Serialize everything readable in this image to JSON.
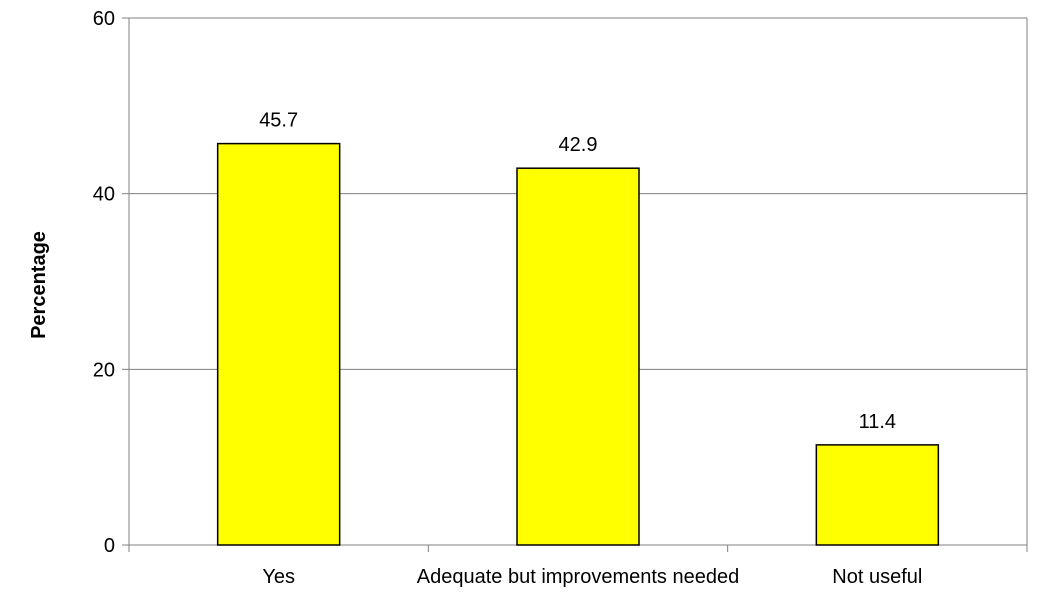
{
  "chart_data": {
    "type": "bar",
    "title": "",
    "xlabel": "",
    "ylabel": "Percentage",
    "categories": [
      "Yes",
      "Adequate but improvements needed",
      "Not useful"
    ],
    "values": [
      45.7,
      42.9,
      11.4
    ],
    "data_labels": [
      "45.7",
      "42.9",
      "11.4"
    ],
    "ylim": [
      0,
      60
    ],
    "yticks": [
      0,
      20,
      40,
      60
    ],
    "grid": true,
    "legend": "none",
    "bar_color": "#FFFF00",
    "bar_edge_color": "#000000",
    "grid_color": "#808080"
  }
}
